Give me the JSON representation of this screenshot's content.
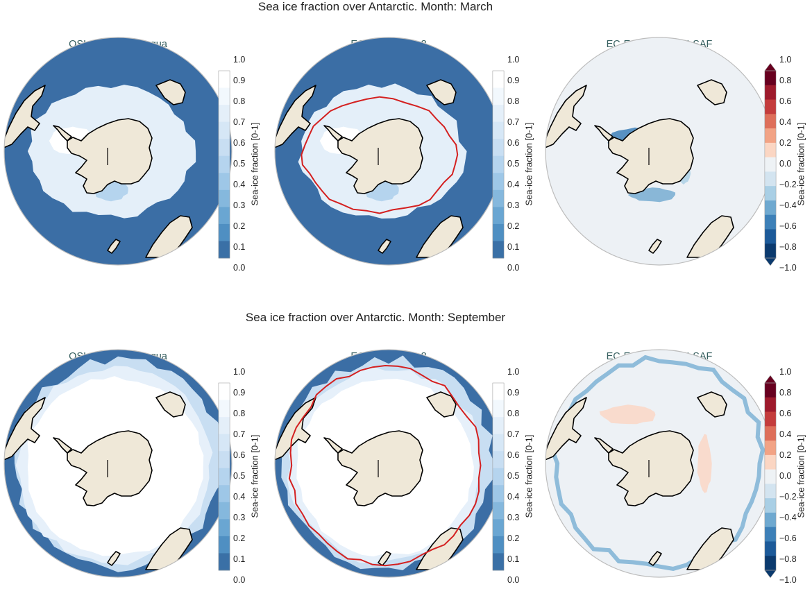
{
  "rows": [
    {
      "title": "Sea ice fraction over Antarctic. Month: March",
      "month": "March",
      "panels": [
        {
          "title": "OSI-SAF osi-saf-aqua",
          "type": "fraction",
          "ice_extent": "small",
          "contour": false
        },
        {
          "title": "EC-EARTH4 ftv8",
          "type": "fraction",
          "ice_extent": "small",
          "contour": true
        },
        {
          "title": "EC-EARTH4 -  OSI-SAF",
          "type": "difference",
          "ice_extent": "small",
          "contour": false
        }
      ]
    },
    {
      "title": "Sea ice fraction over Antarctic. Month: September",
      "month": "September",
      "panels": [
        {
          "title": "OSI-SAF osi-saf-aqua",
          "type": "fraction",
          "ice_extent": "large",
          "contour": false
        },
        {
          "title": "EC-EARTH4 ftv8",
          "type": "fraction",
          "ice_extent": "large",
          "contour": true
        },
        {
          "title": "EC-EARTH4 -  OSI-SAF",
          "type": "difference",
          "ice_extent": "large",
          "contour": false
        }
      ]
    }
  ],
  "colorbars": {
    "fraction": {
      "label": "Sea-ice fraction [0-1]",
      "ticks": [
        "1.0",
        "0.9",
        "0.8",
        "0.7",
        "0.6",
        "0.5",
        "0.4",
        "0.3",
        "0.2",
        "0.1",
        "0.0"
      ],
      "colors": [
        "#ffffff",
        "#f2f8fd",
        "#e4eff9",
        "#d6e7f6",
        "#c8def2",
        "#b5d4ee",
        "#9ec7e7",
        "#85b8dd",
        "#6aa6d2",
        "#4f8fc2",
        "#3a70a6"
      ]
    },
    "difference": {
      "label": "Sea-ice fraction [0-1]",
      "ticks": [
        "1.0",
        "0.8",
        "0.6",
        "0.4",
        "0.2",
        "0.0",
        "−0.2",
        "−0.4",
        "−0.6",
        "−0.8",
        "−1.0"
      ],
      "colors": [
        "#67001f",
        "#9e1a2c",
        "#c43c3c",
        "#de6f5a",
        "#f2a385",
        "#fbd6c3",
        "#eef2f5",
        "#d3e4f0",
        "#a9cfe5",
        "#6fa9d0",
        "#3d80b8",
        "#1c5a99",
        "#0b3a6e"
      ]
    }
  },
  "colors": {
    "ocean": "#3b6ea5",
    "land": "#efe8d8",
    "diff_background": "#edf1f5",
    "contour": "#d42020",
    "coast": "#000000"
  }
}
